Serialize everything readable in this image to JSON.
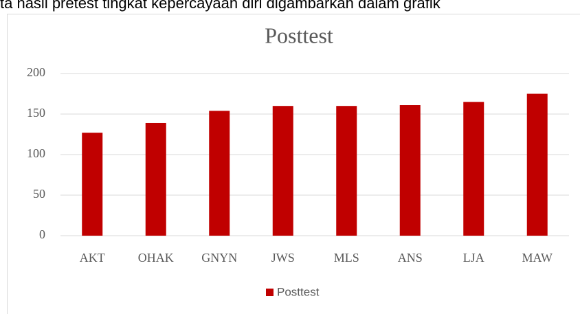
{
  "header_text": "ta hasil pretest tingkat kepercayaan diri digambarkan dalam grafik",
  "chart_data": {
    "type": "bar",
    "title": "Posttest",
    "categories": [
      "AKT",
      "OHAK",
      "GNYN",
      "JWS",
      "MLS",
      "ANS",
      "LJA",
      "MAW"
    ],
    "series": [
      {
        "name": "Posttest",
        "color": "#c00000",
        "values": [
          127,
          139,
          154,
          160,
          160,
          161,
          165,
          175
        ]
      }
    ],
    "ylim": [
      0,
      200
    ],
    "yticks": [
      0,
      50,
      100,
      150,
      200
    ],
    "grid": true,
    "legend": "bottom"
  }
}
